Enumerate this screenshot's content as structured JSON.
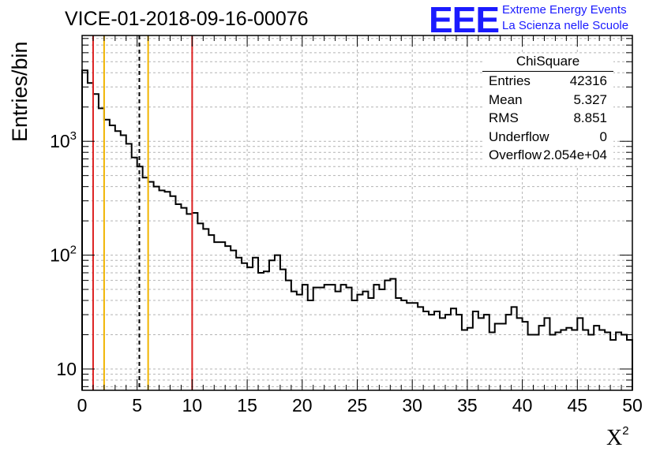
{
  "header": {
    "title": "VICE-01-2018-09-16-00076"
  },
  "logo": {
    "mark": "EEE",
    "line1": "Extreme Energy Events",
    "line2": "La Scienza nelle Scuole",
    "color": "#1a1aff"
  },
  "stats_box": {
    "title": "ChiSquare",
    "rows": [
      {
        "key": "Entries",
        "value": "42316"
      },
      {
        "key": "Mean",
        "value": "5.327"
      },
      {
        "key": "RMS",
        "value": "8.851"
      },
      {
        "key": "Underflow",
        "value": "0"
      },
      {
        "key": "Overflow",
        "value": "2.054e+04"
      }
    ]
  },
  "chart_data": {
    "type": "histogram",
    "title": "VICE-01-2018-09-16-00076",
    "xlabel": "X",
    "xlabel_superscript": "2",
    "ylabel": "Entries/bin",
    "xlim": [
      0,
      50
    ],
    "ylim": [
      6.5,
      8500
    ],
    "yscale": "log",
    "grid": true,
    "bin_width": 0.5,
    "x_ticks": [
      "0",
      "5",
      "10",
      "15",
      "20",
      "25",
      "30",
      "35",
      "40",
      "45",
      "50"
    ],
    "y_ticks": [
      {
        "value": 10,
        "label": "10"
      },
      {
        "value": 100,
        "label": "10",
        "exp": "2"
      },
      {
        "value": 1000,
        "label": "10",
        "exp": "3"
      }
    ],
    "values": [
      4200,
      3250,
      2600,
      1950,
      1550,
      1380,
      1230,
      1130,
      950,
      720,
      600,
      480,
      440,
      400,
      370,
      360,
      330,
      280,
      260,
      230,
      235,
      190,
      170,
      150,
      130,
      130,
      120,
      110,
      95,
      85,
      78,
      95,
      70,
      72,
      90,
      100,
      75,
      60,
      48,
      45,
      55,
      40,
      52,
      52,
      55,
      55,
      48,
      55,
      52,
      40,
      45,
      48,
      42,
      55,
      50,
      60,
      62,
      42,
      40,
      38,
      38,
      35,
      32,
      30,
      32,
      28,
      30,
      34,
      30,
      22,
      23,
      32,
      28,
      30,
      21,
      25,
      25,
      30,
      35,
      28,
      26,
      20,
      20,
      24,
      28,
      20,
      21,
      22,
      23,
      22,
      28,
      22,
      20,
      24,
      22,
      21,
      18,
      21,
      20,
      18
    ],
    "reference_lines": [
      {
        "x": 1.0,
        "color": "#dd2020",
        "style": "solid"
      },
      {
        "x": 2.0,
        "color": "#f0b400",
        "style": "solid"
      },
      {
        "x": 5.2,
        "color": "#000000",
        "style": "dashed"
      },
      {
        "x": 6.0,
        "color": "#f0b400",
        "style": "solid"
      },
      {
        "x": 10.0,
        "color": "#dd2020",
        "style": "solid"
      }
    ]
  }
}
